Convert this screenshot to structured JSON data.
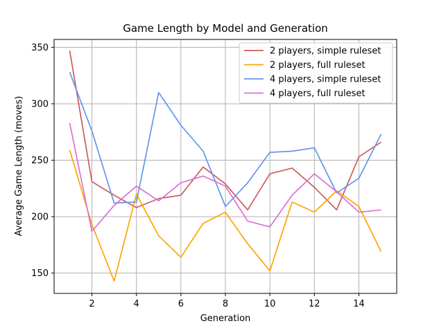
{
  "chart_data": {
    "type": "line",
    "title": "Game Length by Model and Generation",
    "xlabel": "Generation",
    "ylabel": "Average Game Length (moves)",
    "xlim": [
      0.3,
      15.7
    ],
    "ylim": [
      132,
      357
    ],
    "xticks": [
      2,
      4,
      6,
      8,
      10,
      12,
      14
    ],
    "yticks": [
      150,
      200,
      250,
      300,
      350
    ],
    "grid": true,
    "legend_position": "top-right",
    "x": [
      1,
      2,
      3,
      4,
      5,
      6,
      7,
      8,
      9,
      10,
      11,
      12,
      13,
      14,
      15
    ],
    "series": [
      {
        "name": "2 players, simple ruleset",
        "color": "#cd5c5c",
        "values": [
          347,
          231,
          219,
          208,
          216,
          219,
          244,
          229,
          206,
          238,
          243,
          226,
          206,
          253,
          266
        ]
      },
      {
        "name": "2 players, full ruleset",
        "color": "#ffa500",
        "values": [
          259,
          193,
          143,
          220,
          183,
          164,
          194,
          204,
          176,
          152,
          213,
          204,
          223,
          209,
          169
        ]
      },
      {
        "name": "4 players, simple ruleset",
        "color": "#6495ed",
        "values": [
          328,
          276,
          212,
          213,
          310,
          281,
          258,
          209,
          230,
          257,
          258,
          261,
          221,
          234,
          273
        ]
      },
      {
        "name": "4 players, full ruleset",
        "color": "#da70d6",
        "values": [
          283,
          187,
          210,
          227,
          214,
          230,
          236,
          227,
          196,
          191,
          219,
          238,
          222,
          204,
          206
        ]
      }
    ]
  }
}
